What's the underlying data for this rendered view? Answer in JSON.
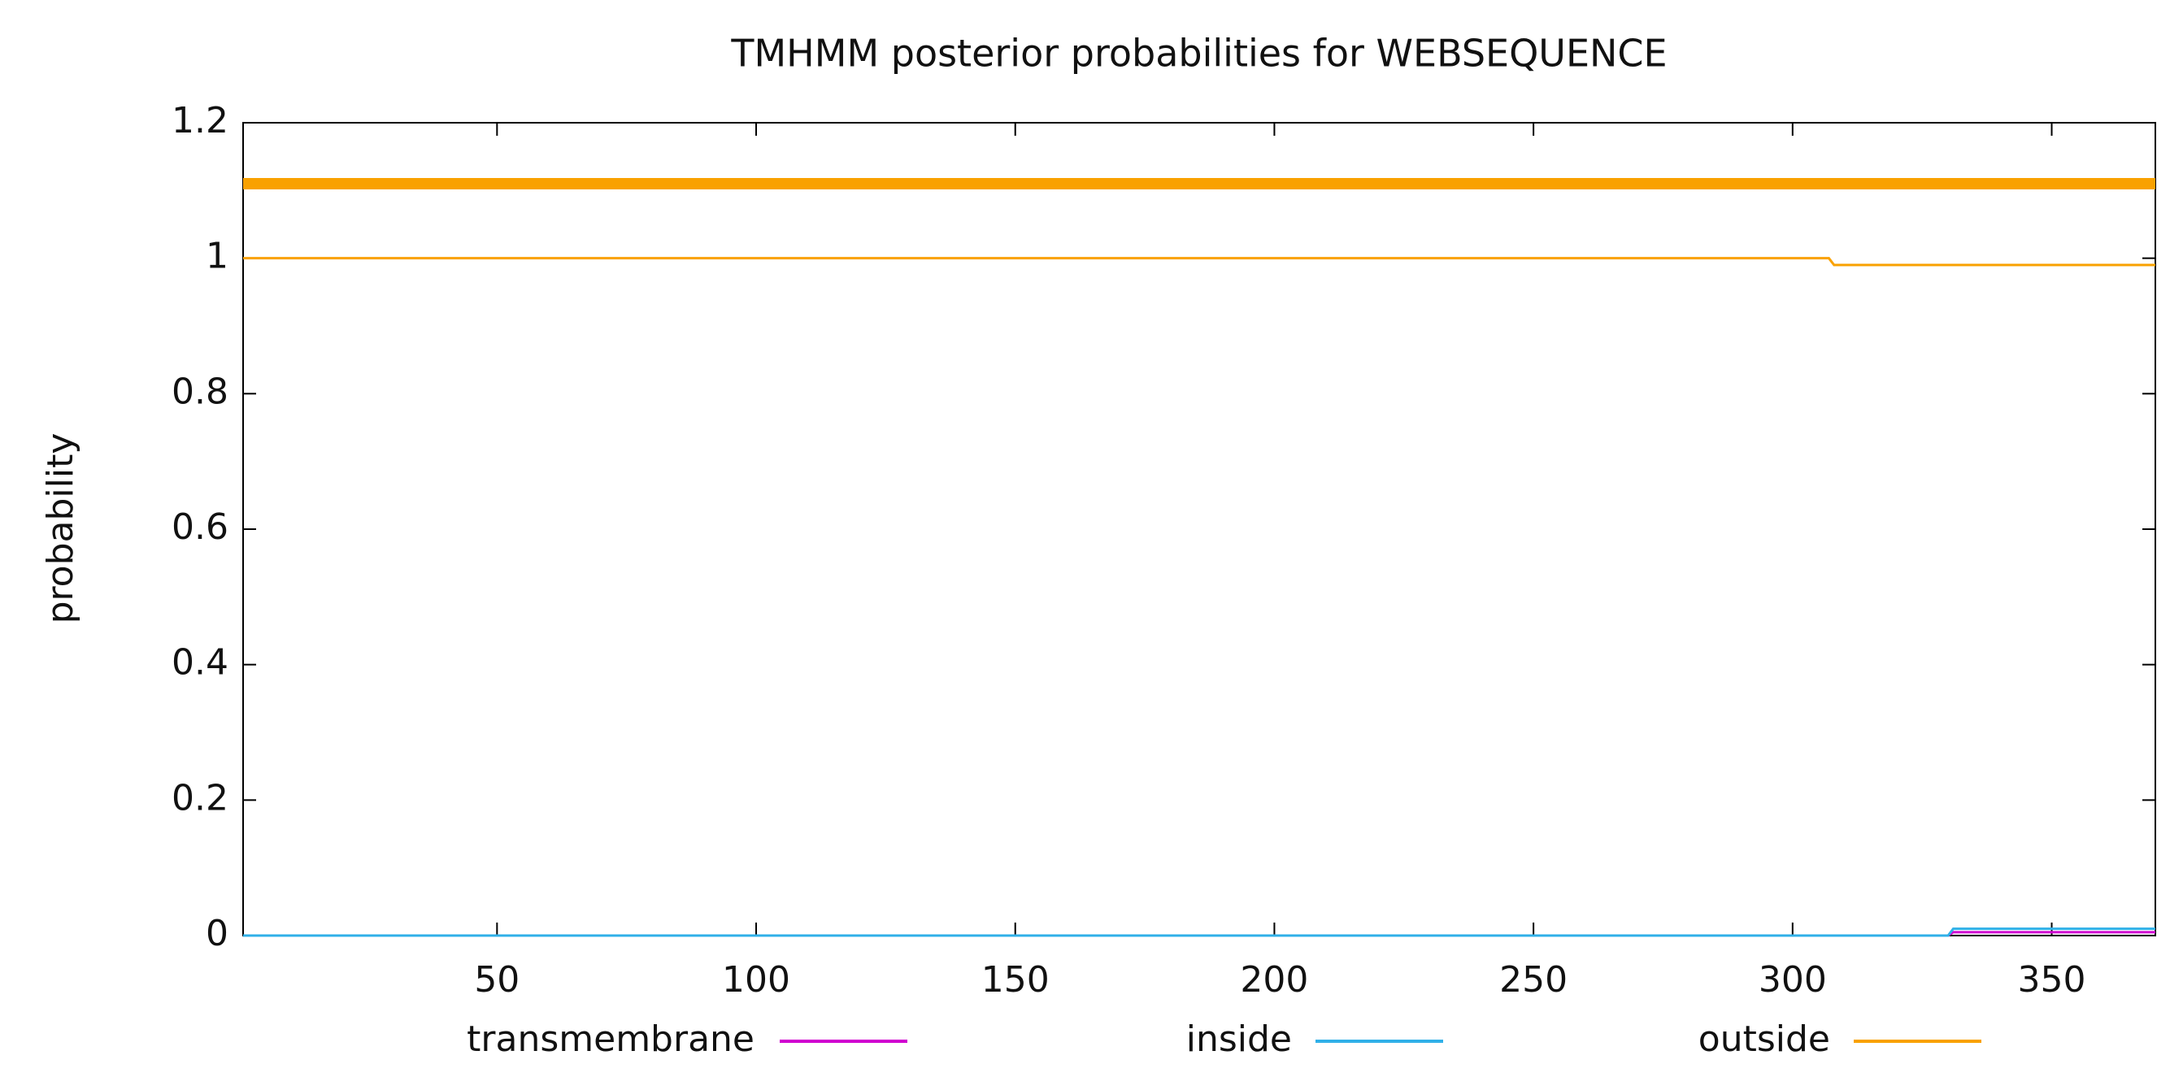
{
  "chart_data": {
    "type": "line",
    "title": "TMHMM posterior probabilities for WEBSEQUENCE",
    "y_label": "probability",
    "x": [
      1,
      307,
      308,
      330,
      331,
      370
    ],
    "series": [
      {
        "name": "transmembrane",
        "color": "#d000d0",
        "values": [
          0,
          0,
          0,
          0,
          0.005,
          0.005
        ]
      },
      {
        "name": "inside",
        "color": "#30b0e8",
        "values": [
          0,
          0,
          0,
          0,
          0.01,
          0.01
        ]
      },
      {
        "name": "outside",
        "color": "#f9a100",
        "values": [
          1,
          1,
          0.99,
          0.99,
          0.99,
          0.99
        ]
      }
    ],
    "predicted_regions": [
      {
        "start": 1,
        "end": 370,
        "y": 1.11,
        "color": "#f9a100"
      }
    ],
    "xlim": [
      1,
      370
    ],
    "xticks": [
      50,
      100,
      150,
      200,
      250,
      300,
      350
    ],
    "ylim": [
      0,
      1.2
    ],
    "yticks": [
      0,
      0.2,
      0.4,
      0.6,
      0.8,
      1,
      1.2
    ],
    "legend": "bottom"
  }
}
